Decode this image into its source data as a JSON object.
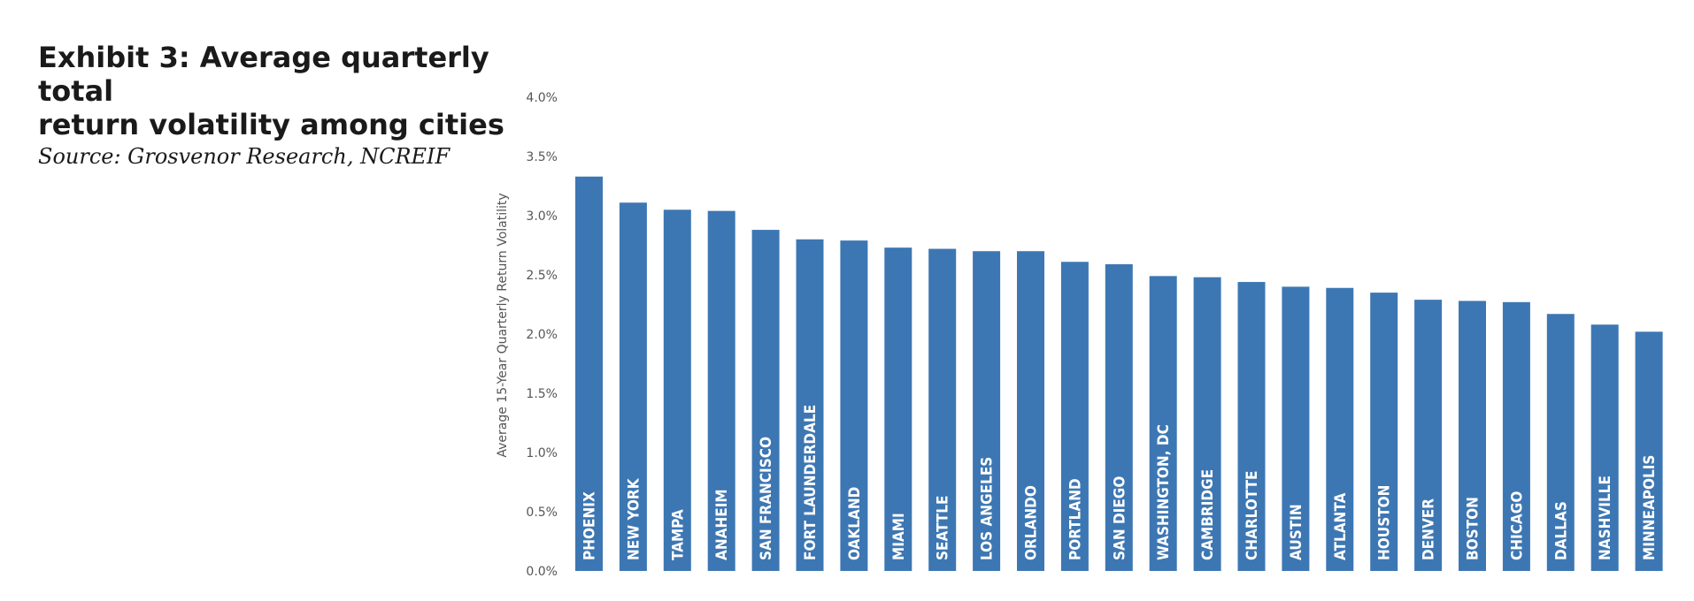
{
  "header": {
    "title_line1": "Exhibit 3: Average quarterly total",
    "title_line2": "return volatility among cities",
    "source": "Source: Grosvenor Research, NCREIF"
  },
  "colors": {
    "bar": "#3d77b3",
    "text": "#1a1a1a",
    "axis_text": "#555555"
  },
  "chart_data": {
    "type": "bar",
    "title": "Exhibit 3: Average quarterly total return volatility among cities",
    "subtitle": "Source: Grosvenor Research, NCREIF",
    "xlabel": "",
    "ylabel": "Average 15-Year Quarterly Return Volatility",
    "ylim": [
      0,
      4.0
    ],
    "yticks": [
      "0.0%",
      "0.5%",
      "1.0%",
      "1.5%",
      "2.0%",
      "2.5%",
      "3.0%",
      "3.5%",
      "4.0%"
    ],
    "grid": false,
    "categories": [
      "PHOENIX",
      "NEW YORK",
      "TAMPA",
      "ANAHEIM",
      "SAN FRANCISCO",
      "FORT LAUNDERDALE",
      "OAKLAND",
      "MIAMI",
      "SEATTLE",
      "LOS ANGELES",
      "ORLANDO",
      "PORTLAND",
      "SAN DIEGO",
      "WASHINGTON, DC",
      "CAMBRIDGE",
      "CHARLOTTE",
      "AUSTIN",
      "ATLANTA",
      "HOUSTON",
      "DENVER",
      "BOSTON",
      "CHICAGO",
      "DALLAS",
      "NASHVILLE",
      "MINNEAPOLIS"
    ],
    "values": [
      3.33,
      3.11,
      3.05,
      3.04,
      2.88,
      2.8,
      2.79,
      2.73,
      2.72,
      2.7,
      2.7,
      2.61,
      2.59,
      2.49,
      2.48,
      2.44,
      2.4,
      2.39,
      2.35,
      2.29,
      2.28,
      2.27,
      2.17,
      2.08,
      2.02
    ]
  }
}
